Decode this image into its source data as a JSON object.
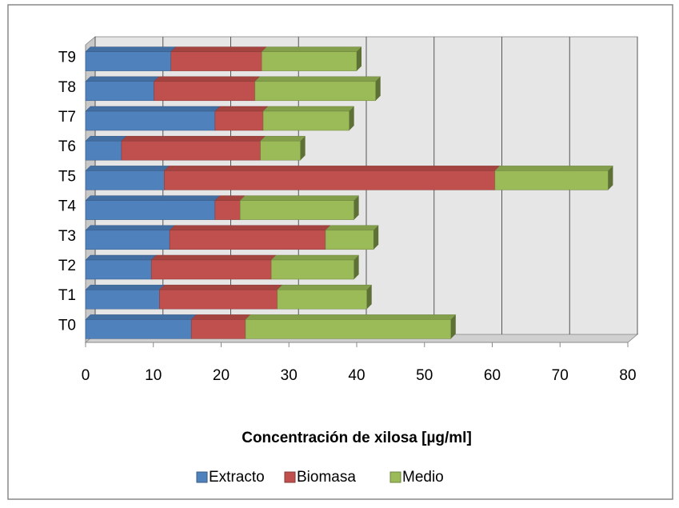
{
  "chart_data": {
    "type": "bar",
    "orientation": "horizontal",
    "stacked": true,
    "xlabel": "Concentración de xilosa [µg/ml]",
    "categories": [
      "T0",
      "T1",
      "T2",
      "T3",
      "T4",
      "T5",
      "T6",
      "T7",
      "T8",
      "T9"
    ],
    "series": [
      {
        "name": "Extracto",
        "color": "#4f81bd",
        "values": [
          15.6,
          10.9,
          9.7,
          12.4,
          19.1,
          11.6,
          5.3,
          19.1,
          10.1,
          12.6
        ]
      },
      {
        "name": "Biomasa",
        "color": "#c0504d",
        "values": [
          8.0,
          17.4,
          17.7,
          23.0,
          3.7,
          48.8,
          20.5,
          7.1,
          14.9,
          13.4
        ]
      },
      {
        "name": "Medio",
        "color": "#9bbb59",
        "values": [
          30.3,
          13.2,
          12.2,
          7.1,
          16.8,
          16.7,
          5.9,
          12.7,
          17.8,
          14.0
        ]
      }
    ],
    "xlim": [
      0,
      80
    ],
    "xticks": [
      0,
      10,
      20,
      30,
      40,
      50,
      60,
      70,
      80
    ],
    "grid": true,
    "legend": "bottom"
  }
}
